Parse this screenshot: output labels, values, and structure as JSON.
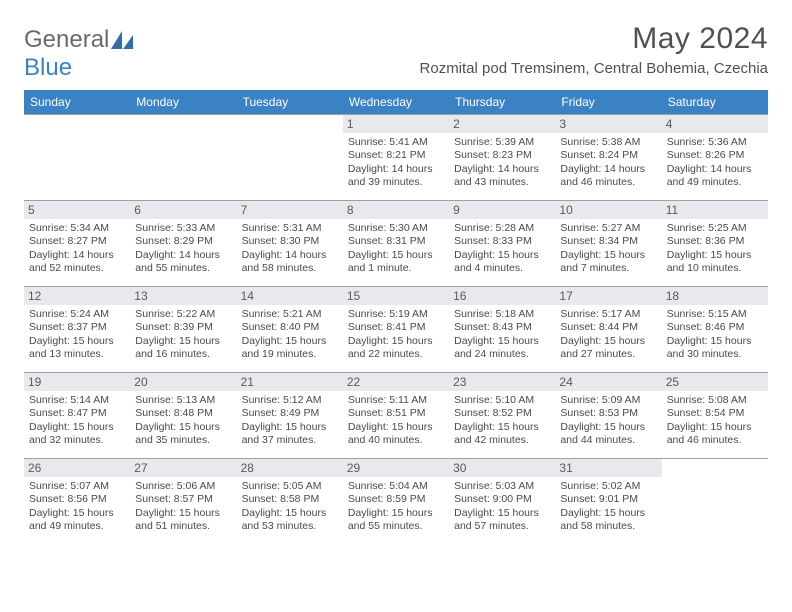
{
  "logo": {
    "text1": "General",
    "text2": "Blue"
  },
  "header": {
    "month_title": "May 2024",
    "location": "Rozmital pod Tremsinem, Central Bohemia, Czechia"
  },
  "weekdays": [
    "Sunday",
    "Monday",
    "Tuesday",
    "Wednesday",
    "Thursday",
    "Friday",
    "Saturday"
  ],
  "colors": {
    "accent": "#3b82c4",
    "header_day_bg": "#e7e9ec",
    "rule": "#9aa0a6",
    "text": "#4a4a4a"
  },
  "weeks": [
    [
      {
        "day": "",
        "lines": []
      },
      {
        "day": "",
        "lines": []
      },
      {
        "day": "",
        "lines": []
      },
      {
        "day": "1",
        "lines": [
          "Sunrise: 5:41 AM",
          "Sunset: 8:21 PM",
          "Daylight: 14 hours",
          "and 39 minutes."
        ]
      },
      {
        "day": "2",
        "lines": [
          "Sunrise: 5:39 AM",
          "Sunset: 8:23 PM",
          "Daylight: 14 hours",
          "and 43 minutes."
        ]
      },
      {
        "day": "3",
        "lines": [
          "Sunrise: 5:38 AM",
          "Sunset: 8:24 PM",
          "Daylight: 14 hours",
          "and 46 minutes."
        ]
      },
      {
        "day": "4",
        "lines": [
          "Sunrise: 5:36 AM",
          "Sunset: 8:26 PM",
          "Daylight: 14 hours",
          "and 49 minutes."
        ]
      }
    ],
    [
      {
        "day": "5",
        "lines": [
          "Sunrise: 5:34 AM",
          "Sunset: 8:27 PM",
          "Daylight: 14 hours",
          "and 52 minutes."
        ]
      },
      {
        "day": "6",
        "lines": [
          "Sunrise: 5:33 AM",
          "Sunset: 8:29 PM",
          "Daylight: 14 hours",
          "and 55 minutes."
        ]
      },
      {
        "day": "7",
        "lines": [
          "Sunrise: 5:31 AM",
          "Sunset: 8:30 PM",
          "Daylight: 14 hours",
          "and 58 minutes."
        ]
      },
      {
        "day": "8",
        "lines": [
          "Sunrise: 5:30 AM",
          "Sunset: 8:31 PM",
          "Daylight: 15 hours",
          "and 1 minute."
        ]
      },
      {
        "day": "9",
        "lines": [
          "Sunrise: 5:28 AM",
          "Sunset: 8:33 PM",
          "Daylight: 15 hours",
          "and 4 minutes."
        ]
      },
      {
        "day": "10",
        "lines": [
          "Sunrise: 5:27 AM",
          "Sunset: 8:34 PM",
          "Daylight: 15 hours",
          "and 7 minutes."
        ]
      },
      {
        "day": "11",
        "lines": [
          "Sunrise: 5:25 AM",
          "Sunset: 8:36 PM",
          "Daylight: 15 hours",
          "and 10 minutes."
        ]
      }
    ],
    [
      {
        "day": "12",
        "lines": [
          "Sunrise: 5:24 AM",
          "Sunset: 8:37 PM",
          "Daylight: 15 hours",
          "and 13 minutes."
        ]
      },
      {
        "day": "13",
        "lines": [
          "Sunrise: 5:22 AM",
          "Sunset: 8:39 PM",
          "Daylight: 15 hours",
          "and 16 minutes."
        ]
      },
      {
        "day": "14",
        "lines": [
          "Sunrise: 5:21 AM",
          "Sunset: 8:40 PM",
          "Daylight: 15 hours",
          "and 19 minutes."
        ]
      },
      {
        "day": "15",
        "lines": [
          "Sunrise: 5:19 AM",
          "Sunset: 8:41 PM",
          "Daylight: 15 hours",
          "and 22 minutes."
        ]
      },
      {
        "day": "16",
        "lines": [
          "Sunrise: 5:18 AM",
          "Sunset: 8:43 PM",
          "Daylight: 15 hours",
          "and 24 minutes."
        ]
      },
      {
        "day": "17",
        "lines": [
          "Sunrise: 5:17 AM",
          "Sunset: 8:44 PM",
          "Daylight: 15 hours",
          "and 27 minutes."
        ]
      },
      {
        "day": "18",
        "lines": [
          "Sunrise: 5:15 AM",
          "Sunset: 8:46 PM",
          "Daylight: 15 hours",
          "and 30 minutes."
        ]
      }
    ],
    [
      {
        "day": "19",
        "lines": [
          "Sunrise: 5:14 AM",
          "Sunset: 8:47 PM",
          "Daylight: 15 hours",
          "and 32 minutes."
        ]
      },
      {
        "day": "20",
        "lines": [
          "Sunrise: 5:13 AM",
          "Sunset: 8:48 PM",
          "Daylight: 15 hours",
          "and 35 minutes."
        ]
      },
      {
        "day": "21",
        "lines": [
          "Sunrise: 5:12 AM",
          "Sunset: 8:49 PM",
          "Daylight: 15 hours",
          "and 37 minutes."
        ]
      },
      {
        "day": "22",
        "lines": [
          "Sunrise: 5:11 AM",
          "Sunset: 8:51 PM",
          "Daylight: 15 hours",
          "and 40 minutes."
        ]
      },
      {
        "day": "23",
        "lines": [
          "Sunrise: 5:10 AM",
          "Sunset: 8:52 PM",
          "Daylight: 15 hours",
          "and 42 minutes."
        ]
      },
      {
        "day": "24",
        "lines": [
          "Sunrise: 5:09 AM",
          "Sunset: 8:53 PM",
          "Daylight: 15 hours",
          "and 44 minutes."
        ]
      },
      {
        "day": "25",
        "lines": [
          "Sunrise: 5:08 AM",
          "Sunset: 8:54 PM",
          "Daylight: 15 hours",
          "and 46 minutes."
        ]
      }
    ],
    [
      {
        "day": "26",
        "lines": [
          "Sunrise: 5:07 AM",
          "Sunset: 8:56 PM",
          "Daylight: 15 hours",
          "and 49 minutes."
        ]
      },
      {
        "day": "27",
        "lines": [
          "Sunrise: 5:06 AM",
          "Sunset: 8:57 PM",
          "Daylight: 15 hours",
          "and 51 minutes."
        ]
      },
      {
        "day": "28",
        "lines": [
          "Sunrise: 5:05 AM",
          "Sunset: 8:58 PM",
          "Daylight: 15 hours",
          "and 53 minutes."
        ]
      },
      {
        "day": "29",
        "lines": [
          "Sunrise: 5:04 AM",
          "Sunset: 8:59 PM",
          "Daylight: 15 hours",
          "and 55 minutes."
        ]
      },
      {
        "day": "30",
        "lines": [
          "Sunrise: 5:03 AM",
          "Sunset: 9:00 PM",
          "Daylight: 15 hours",
          "and 57 minutes."
        ]
      },
      {
        "day": "31",
        "lines": [
          "Sunrise: 5:02 AM",
          "Sunset: 9:01 PM",
          "Daylight: 15 hours",
          "and 58 minutes."
        ]
      },
      {
        "day": "",
        "lines": []
      }
    ]
  ]
}
